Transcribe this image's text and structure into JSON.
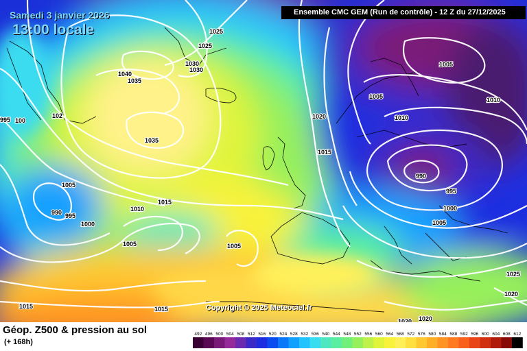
{
  "header": {
    "date": "Samedi 3 janvier 2026",
    "local_time": "13:00 locale",
    "model_run": "Ensemble CMC GEM  (Run de contrôle)  -  12 Z du 27/12/2025"
  },
  "copyright": "Copyright © 2025 Meteociel.fr",
  "legend": {
    "title": "Géop. Z500 & pression au sol",
    "forecast_hour": "(+ 168h)",
    "scale_values": [
      "492",
      "496",
      "500",
      "504",
      "508",
      "512",
      "516",
      "520",
      "524",
      "528",
      "532",
      "536",
      "540",
      "544",
      "548",
      "552",
      "556",
      "560",
      "564",
      "568",
      "572",
      "576",
      "580",
      "584",
      "588",
      "592",
      "596",
      "600",
      "604",
      "608",
      "612"
    ],
    "scale_colors": [
      "#3a0035",
      "#5a0a55",
      "#7a1a78",
      "#962a9a",
      "#6a2bb0",
      "#3a2bc8",
      "#1c2ee0",
      "#0a4cf0",
      "#0a78f8",
      "#12a0ff",
      "#22c4ff",
      "#3adcf0",
      "#4ee8c0",
      "#5aeea0",
      "#70f07a",
      "#96f05c",
      "#bef24a",
      "#e0f43a",
      "#f8f23a",
      "#fff05a",
      "#ffe040",
      "#ffc830",
      "#ffae28",
      "#ff9424",
      "#ff7a20",
      "#f8601c",
      "#e84418",
      "#d03010",
      "#b01a0a",
      "#880a06",
      "#000000"
    ]
  },
  "map": {
    "pressure_labels": [
      {
        "text": "1025"
      },
      {
        "text": "1025"
      },
      {
        "text": "1030"
      },
      {
        "text": "1030"
      },
      {
        "text": "1040"
      },
      {
        "text": "1035"
      },
      {
        "text": "1035"
      },
      {
        "text": "102"
      },
      {
        "text": "995"
      },
      {
        "text": "100"
      },
      {
        "text": "1005"
      },
      {
        "text": "990"
      },
      {
        "text": "995"
      },
      {
        "text": "1000"
      },
      {
        "text": "1010"
      },
      {
        "text": "1015"
      },
      {
        "text": "1005"
      },
      {
        "text": "1005"
      },
      {
        "text": "1015"
      },
      {
        "text": "1015"
      },
      {
        "text": "1020"
      },
      {
        "text": "1015"
      },
      {
        "text": "1005"
      },
      {
        "text": "1005"
      },
      {
        "text": "1010"
      },
      {
        "text": "1010"
      },
      {
        "text": "990"
      },
      {
        "text": "995"
      },
      {
        "text": "1000"
      },
      {
        "text": "1005"
      },
      {
        "text": "1025"
      },
      {
        "text": "1020"
      },
      {
        "text": "1020"
      },
      {
        "text": "1020"
      }
    ]
  }
}
